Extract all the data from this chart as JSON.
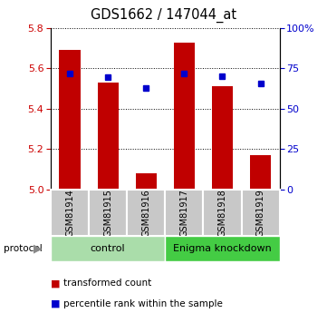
{
  "title": "GDS1662 / 147044_at",
  "samples": [
    "GSM81914",
    "GSM81915",
    "GSM81916",
    "GSM81917",
    "GSM81918",
    "GSM81919"
  ],
  "bar_values": [
    5.69,
    5.53,
    5.08,
    5.73,
    5.51,
    5.17
  ],
  "percentile_values": [
    5.575,
    5.555,
    5.505,
    5.575,
    5.56,
    5.525
  ],
  "ylim": [
    5.0,
    5.8
  ],
  "yticks": [
    5.0,
    5.2,
    5.4,
    5.6,
    5.8
  ],
  "right_yticks": [
    0,
    25,
    50,
    75,
    100
  ],
  "bar_color": "#C00000",
  "dot_color": "#0000CC",
  "bar_bottom": 5.0,
  "protocol_groups": [
    {
      "label": "control",
      "start": 0,
      "end": 3,
      "color": "#aaddaa"
    },
    {
      "label": "Enigma knockdown",
      "start": 3,
      "end": 6,
      "color": "#44cc44"
    }
  ],
  "legend_items": [
    {
      "label": "transformed count",
      "color": "#C00000"
    },
    {
      "label": "percentile rank within the sample",
      "color": "#0000CC"
    }
  ],
  "tick_label_color_left": "#CC0000",
  "tick_label_color_right": "#0000CC",
  "label_box_color": "#C8C8C8"
}
